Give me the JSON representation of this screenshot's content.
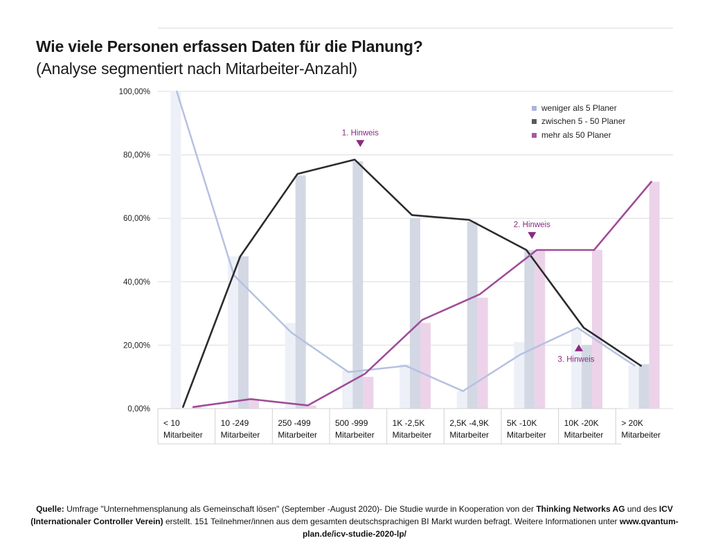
{
  "title": "Wie viele Personen erfassen Daten für die Planung?",
  "subtitle": "(Analyse segmentiert nach Mitarbeiter-Anzahl)",
  "chart_data": {
    "type": "bar",
    "categories": [
      [
        "< 10",
        "Mitarbeiter"
      ],
      [
        "10 -249",
        "Mitarbeiter"
      ],
      [
        "250 -499",
        "Mitarbeiter"
      ],
      [
        "500 -999",
        "Mitarbeiter"
      ],
      [
        "1K -2,5K",
        "Mitarbeiter"
      ],
      [
        "2,5K -4,9K",
        "Mitarbeiter"
      ],
      [
        "5K -10K",
        "Mitarbeiter"
      ],
      [
        "10K -20K",
        "Mitarbeiter"
      ],
      [
        "> 20K",
        "Mitarbeiter"
      ]
    ],
    "yticks": [
      "0,00%",
      "20,00%",
      "40,00%",
      "60,00%",
      "80,00%",
      "100,00%"
    ],
    "ylim": [
      0,
      100
    ],
    "grid": true,
    "legend_position": "top-right",
    "series": [
      {
        "name": "weniger als 5 Planer",
        "color": "#a9b6d9",
        "bar_color": "#eef0f8",
        "values": [
          100,
          48,
          27,
          12,
          14,
          5.5,
          21,
          25,
          13.5
        ],
        "line": [
          100,
          42,
          24,
          11.5,
          13.5,
          5.5,
          17,
          25.5,
          13.5
        ]
      },
      {
        "name": "zwischen 5 - 50 Planer",
        "color": "#5a5a5a",
        "bar_color": "#d3d8e4",
        "values": [
          0,
          48,
          73.5,
          78,
          60,
          59,
          50,
          20,
          14
        ],
        "line": [
          0.5,
          48,
          74,
          78.5,
          61,
          59.5,
          50,
          25.5,
          13.5
        ]
      },
      {
        "name": "mehr als 50 Planer",
        "color": "#a8589f",
        "bar_color": "#ecd3e9",
        "values": [
          0.5,
          3,
          1,
          10,
          27,
          35,
          50,
          50,
          71.5
        ],
        "line": [
          0.5,
          3,
          1,
          11,
          28,
          36,
          50,
          50,
          71.5
        ]
      }
    ],
    "annotations": [
      {
        "text": "1. Hinweis",
        "category_index": 3,
        "value": 84,
        "marker": "down"
      },
      {
        "text": "2. Hinweis",
        "category_index": 6,
        "value": 55,
        "marker": "down"
      },
      {
        "text": "3. Hinweis",
        "category_index": 7,
        "value": 18.5,
        "marker": "up"
      }
    ]
  },
  "source": {
    "label": "Quelle:",
    "text1": " Umfrage \"Unternehmensplanung als Gemeinschaft lösen\" (September -August 2020)- Die Studie wurde in Kooperation von der ",
    "tn": "Thinking Networks AG",
    "text2": " und des ",
    "icv": "ICV (Internationaler Controller Verein)",
    "text3": " erstellt. 151 Teilnehmer/innen aus dem gesamten deutschsprachigen BI Markt wurden befragt. Weitere Informationen unter ",
    "url": "www.qvantum-plan.de/icv-studie-2020-lp/"
  }
}
